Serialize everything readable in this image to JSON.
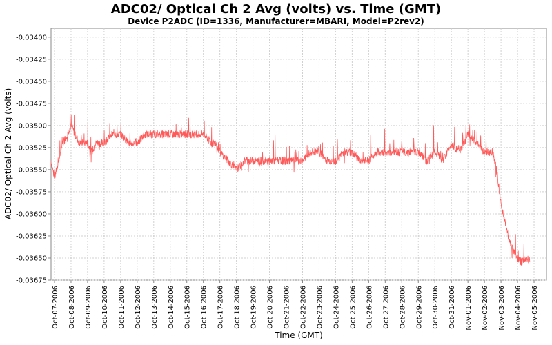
{
  "chart_data": {
    "type": "line",
    "title": "ADC02/ Optical Ch 2 Avg (volts) vs. Time (GMT)",
    "subtitle": "Device P2ADC (ID=1336, Manufacturer=MBARI, Model=P2rev2)",
    "xlabel": "Time (GMT)",
    "ylabel": "ADC02/ Optical Ch 2 Avg (volts)",
    "ylim": [
      -0.03675,
      -0.0339
    ],
    "xlim": [
      "2006-10-06T19:00",
      "2006-11-05T18:00"
    ],
    "yticks": [
      -0.034,
      -0.03425,
      -0.0345,
      -0.03475,
      -0.035,
      -0.03525,
      -0.0355,
      -0.03575,
      -0.036,
      -0.03625,
      -0.0365,
      -0.03675
    ],
    "ytick_labels": [
      "-0.03400",
      "-0.03425",
      "-0.03450",
      "-0.03475",
      "-0.03500",
      "-0.03525",
      "-0.03550",
      "-0.03575",
      "-0.03600",
      "-0.03625",
      "-0.03650",
      "-0.03675"
    ],
    "xtick_labels": [
      "Oct-07-2006",
      "Oct-08-2006",
      "Oct-09-2006",
      "Oct-10-2006",
      "Oct-11-2006",
      "Oct-12-2006",
      "Oct-13-2006",
      "Oct-14-2006",
      "Oct-15-2006",
      "Oct-16-2006",
      "Oct-17-2006",
      "Oct-18-2006",
      "Oct-19-2006",
      "Oct-20-2006",
      "Oct-21-2006",
      "Oct-22-2006",
      "Oct-23-2006",
      "Oct-24-2006",
      "Oct-25-2006",
      "Oct-26-2006",
      "Oct-27-2006",
      "Oct-28-2006",
      "Oct-29-2006",
      "Oct-30-2006",
      "Oct-31-2006",
      "Nov-01-2006",
      "Nov-02-2006",
      "Nov-03-2006",
      "Nov-04-2006",
      "Nov-05-2006"
    ],
    "grid": true,
    "series": [
      {
        "color": "#ff5a5a",
        "x": [
          "2006-10-06T19:00",
          "2006-10-07T00:00",
          "2006-10-07T06:00",
          "2006-10-07T12:00",
          "2006-10-07T18:00",
          "2006-10-08T00:00",
          "2006-10-08T06:00",
          "2006-10-08T12:00",
          "2006-10-08T18:00",
          "2006-10-09T00:00",
          "2006-10-09T06:00",
          "2006-10-09T12:00",
          "2006-10-09T18:00",
          "2006-10-10T00:00",
          "2006-10-10T12:00",
          "2006-10-11T00:00",
          "2006-10-11T12:00",
          "2006-10-12T00:00",
          "2006-10-12T12:00",
          "2006-10-13T00:00",
          "2006-10-13T12:00",
          "2006-10-14T00:00",
          "2006-10-14T12:00",
          "2006-10-15T00:00",
          "2006-10-15T12:00",
          "2006-10-16T00:00",
          "2006-10-16T12:00",
          "2006-10-16T18:00",
          "2006-10-17T00:00",
          "2006-10-17T12:00",
          "2006-10-18T00:00",
          "2006-10-18T12:00",
          "2006-10-19T00:00",
          "2006-10-19T12:00",
          "2006-10-20T00:00",
          "2006-10-20T12:00",
          "2006-10-21T00:00",
          "2006-10-21T12:00",
          "2006-10-22T00:00",
          "2006-10-22T12:00",
          "2006-10-23T00:00",
          "2006-10-23T12:00",
          "2006-10-24T00:00",
          "2006-10-24T12:00",
          "2006-10-25T00:00",
          "2006-10-25T12:00",
          "2006-10-26T00:00",
          "2006-10-26T12:00",
          "2006-10-27T00:00",
          "2006-10-27T12:00",
          "2006-10-28T00:00",
          "2006-10-28T12:00",
          "2006-10-29T00:00",
          "2006-10-29T12:00",
          "2006-10-30T00:00",
          "2006-10-30T12:00",
          "2006-10-31T00:00",
          "2006-10-31T12:00",
          "2006-11-01T00:00",
          "2006-11-01T12:00",
          "2006-11-02T00:00",
          "2006-11-02T12:00",
          "2006-11-02T18:00",
          "2006-11-03T00:00",
          "2006-11-03T06:00",
          "2006-11-03T12:00",
          "2006-11-03T18:00",
          "2006-11-04T00:00",
          "2006-11-04T06:00",
          "2006-11-04T12:00",
          "2006-11-04T18:00"
        ],
        "y": [
          -0.0354,
          -0.0356,
          -0.0354,
          -0.0352,
          -0.0351,
          -0.035,
          -0.0351,
          -0.0352,
          -0.0352,
          -0.0352,
          -0.0353,
          -0.0352,
          -0.0352,
          -0.0352,
          -0.0351,
          -0.0351,
          -0.0352,
          -0.0352,
          -0.0351,
          -0.0351,
          -0.0351,
          -0.0351,
          -0.0351,
          -0.0351,
          -0.0351,
          -0.0351,
          -0.0352,
          -0.0352,
          -0.0353,
          -0.0354,
          -0.0355,
          -0.0354,
          -0.0354,
          -0.0354,
          -0.0354,
          -0.0354,
          -0.0354,
          -0.0354,
          -0.0354,
          -0.0353,
          -0.0353,
          -0.0354,
          -0.0354,
          -0.0353,
          -0.0353,
          -0.0354,
          -0.0354,
          -0.0353,
          -0.0353,
          -0.0353,
          -0.0353,
          -0.0353,
          -0.0353,
          -0.0354,
          -0.0353,
          -0.0354,
          -0.0352,
          -0.0353,
          -0.0351,
          -0.0352,
          -0.0353,
          -0.0353,
          -0.0355,
          -0.0359,
          -0.0361,
          -0.0363,
          -0.0364,
          -0.0365,
          -0.03655,
          -0.0365,
          -0.03652
        ]
      }
    ]
  }
}
